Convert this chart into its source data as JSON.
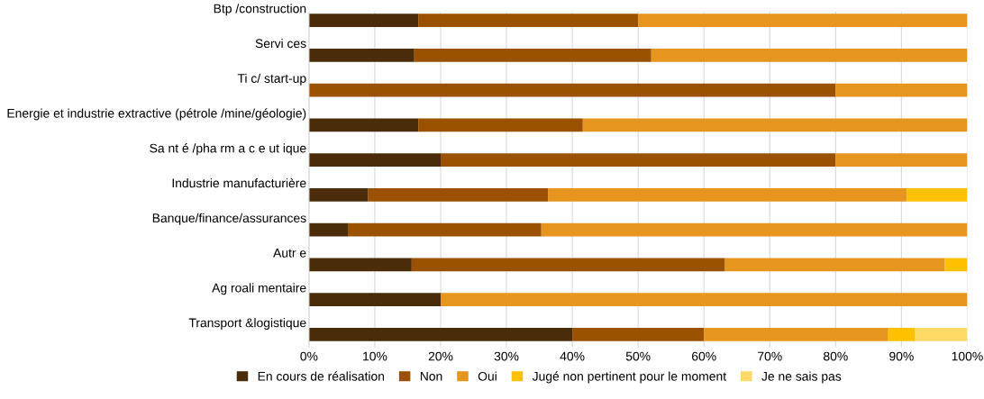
{
  "chart_data": {
    "type": "bar",
    "orientation": "horizontal",
    "stacked": true,
    "categories": [
      "Btp /construction",
      "Servi ces",
      "Ti c/ start-up",
      "Energie et industrie extractive (pétrole /mine/géologie)",
      "Sa nt é /pha rm a c e ut ique",
      "Industrie manufacturière",
      "Banque/finance/assurances",
      "Autr e",
      "Ag roali mentaire",
      "Transport &logistique"
    ],
    "series": [
      {
        "name": "En cours de réalisation",
        "color": "#4a2c0a",
        "values": [
          16.6,
          16,
          0,
          16.6,
          20,
          9,
          5.9,
          15.6,
          20,
          40
        ]
      },
      {
        "name": "Non",
        "color": "#9a5200",
        "values": [
          33.4,
          36,
          80,
          25,
          60,
          27.3,
          29.4,
          47.6,
          0,
          20
        ]
      },
      {
        "name": "Oui",
        "color": "#e6951f",
        "values": [
          50,
          48,
          20,
          58.4,
          20,
          54.5,
          64.7,
          33.4,
          80,
          28
        ]
      },
      {
        "name": "Jugé non pertinent pour le moment",
        "color": "#ffc000",
        "values": [
          0,
          0,
          0,
          0,
          0,
          9.2,
          0,
          3.4,
          0,
          4
        ]
      },
      {
        "name": "Je ne sais pas",
        "color": "#ffd966",
        "values": [
          0,
          0,
          0,
          0,
          0,
          0,
          0,
          0,
          0,
          8
        ]
      }
    ],
    "xlim": [
      0,
      100
    ],
    "xticks": [
      {
        "value": 0,
        "label": "0%"
      },
      {
        "value": 10,
        "label": "10%"
      },
      {
        "value": 20,
        "label": "20%"
      },
      {
        "value": 30,
        "label": "30%"
      },
      {
        "value": 40,
        "label": "40%"
      },
      {
        "value": 50,
        "label": "50%"
      },
      {
        "value": 60,
        "label": "60%"
      },
      {
        "value": 70,
        "label": "70%"
      },
      {
        "value": 80,
        "label": "80%"
      },
      {
        "value": 90,
        "label": "90%"
      },
      {
        "value": 100,
        "label": "100%"
      }
    ],
    "grid": "x",
    "legend": "bottom"
  }
}
